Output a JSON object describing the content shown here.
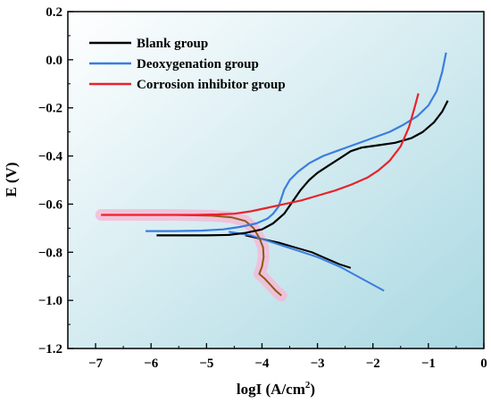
{
  "chart_data": {
    "type": "line",
    "title": "",
    "xlabel": "logI (A/cm",
    "xlabel_sup": "2",
    "xlabel_end": ")",
    "ylabel": "E (V)",
    "xlim": [
      -7.5,
      0
    ],
    "ylim": [
      -1.2,
      0.2
    ],
    "x_ticks": [
      -7,
      -6,
      -5,
      -4,
      -3,
      -2,
      -1,
      0
    ],
    "y_ticks": [
      -1.2,
      -1.0,
      -0.8,
      -0.6,
      -0.4,
      -0.2,
      0.0,
      0.2
    ],
    "x_tick_labels": [
      "−7",
      "−6",
      "−5",
      "−4",
      "−3",
      "−2",
      "−1",
      "0"
    ],
    "y_tick_labels": [
      "−1.2",
      "−1.0",
      "−0.8",
      "−0.6",
      "−0.4",
      "−0.2",
      "0.0",
      "0.2"
    ],
    "legend_position": "top-left",
    "grid": false,
    "background_gradient": [
      "#ffffff",
      "#a9d8e2"
    ],
    "highlight_color": "#f7b6d6",
    "series": [
      {
        "name": "Blank group",
        "color": "#000000",
        "points": [
          [
            -5.9,
            -0.73
          ],
          [
            -5.5,
            -0.73
          ],
          [
            -5.0,
            -0.73
          ],
          [
            -4.6,
            -0.728
          ],
          [
            -4.3,
            -0.72
          ],
          [
            -4.0,
            -0.705
          ],
          [
            -3.8,
            -0.68
          ],
          [
            -3.6,
            -0.64
          ],
          [
            -3.45,
            -0.59
          ],
          [
            -3.3,
            -0.54
          ],
          [
            -3.15,
            -0.5
          ],
          [
            -3.0,
            -0.47
          ],
          [
            -2.8,
            -0.44
          ],
          [
            -2.6,
            -0.41
          ],
          [
            -2.4,
            -0.38
          ],
          [
            -2.2,
            -0.365
          ],
          [
            -1.9,
            -0.355
          ],
          [
            -1.6,
            -0.345
          ],
          [
            -1.3,
            -0.325
          ],
          [
            -1.1,
            -0.3
          ],
          [
            -0.9,
            -0.26
          ],
          [
            -0.75,
            -0.215
          ],
          [
            -0.65,
            -0.17
          ]
        ],
        "cathodic": [
          [
            -4.3,
            -0.73
          ],
          [
            -4.0,
            -0.745
          ],
          [
            -3.7,
            -0.76
          ],
          [
            -3.4,
            -0.78
          ],
          [
            -3.1,
            -0.8
          ],
          [
            -2.8,
            -0.83
          ],
          [
            -2.6,
            -0.85
          ],
          [
            -2.4,
            -0.865
          ]
        ]
      },
      {
        "name": "Deoxygenation group",
        "color": "#3a7de0",
        "points": [
          [
            -6.1,
            -0.712
          ],
          [
            -5.6,
            -0.712
          ],
          [
            -5.1,
            -0.71
          ],
          [
            -4.7,
            -0.705
          ],
          [
            -4.4,
            -0.695
          ],
          [
            -4.1,
            -0.68
          ],
          [
            -3.9,
            -0.66
          ],
          [
            -3.8,
            -0.64
          ],
          [
            -3.7,
            -0.61
          ],
          [
            -3.65,
            -0.575
          ],
          [
            -3.6,
            -0.54
          ],
          [
            -3.5,
            -0.5
          ],
          [
            -3.35,
            -0.465
          ],
          [
            -3.15,
            -0.43
          ],
          [
            -2.9,
            -0.4
          ],
          [
            -2.6,
            -0.375
          ],
          [
            -2.3,
            -0.35
          ],
          [
            -2.0,
            -0.325
          ],
          [
            -1.7,
            -0.3
          ],
          [
            -1.45,
            -0.27
          ],
          [
            -1.2,
            -0.235
          ],
          [
            -1.0,
            -0.19
          ],
          [
            -0.85,
            -0.13
          ],
          [
            -0.75,
            -0.05
          ],
          [
            -0.68,
            0.03
          ]
        ],
        "cathodic": [
          [
            -4.6,
            -0.715
          ],
          [
            -4.2,
            -0.73
          ],
          [
            -3.8,
            -0.76
          ],
          [
            -3.4,
            -0.79
          ],
          [
            -3.0,
            -0.82
          ],
          [
            -2.6,
            -0.86
          ],
          [
            -2.2,
            -0.91
          ],
          [
            -1.8,
            -0.96
          ]
        ]
      },
      {
        "name": "Corrosion inhibitor group",
        "color": "#e8232a",
        "points": [
          [
            -6.9,
            -0.645
          ],
          [
            -6.3,
            -0.645
          ],
          [
            -5.7,
            -0.645
          ],
          [
            -5.2,
            -0.645
          ],
          [
            -4.8,
            -0.643
          ],
          [
            -4.5,
            -0.64
          ],
          [
            -4.2,
            -0.63
          ],
          [
            -3.9,
            -0.615
          ],
          [
            -3.6,
            -0.6
          ],
          [
            -3.3,
            -0.585
          ],
          [
            -3.0,
            -0.565
          ],
          [
            -2.7,
            -0.545
          ],
          [
            -2.4,
            -0.52
          ],
          [
            -2.1,
            -0.49
          ],
          [
            -1.9,
            -0.46
          ],
          [
            -1.7,
            -0.42
          ],
          [
            -1.5,
            -0.36
          ],
          [
            -1.35,
            -0.28
          ],
          [
            -1.25,
            -0.2
          ],
          [
            -1.18,
            -0.14
          ]
        ],
        "cathodic": [
          [
            -6.9,
            -0.645
          ],
          [
            -5.6,
            -0.645
          ],
          [
            -4.9,
            -0.648
          ],
          [
            -4.55,
            -0.655
          ],
          [
            -4.3,
            -0.67
          ],
          [
            -4.15,
            -0.7
          ],
          [
            -4.05,
            -0.74
          ],
          [
            -3.98,
            -0.78
          ],
          [
            -3.97,
            -0.82
          ],
          [
            -4.0,
            -0.86
          ],
          [
            -4.05,
            -0.89
          ],
          [
            -3.95,
            -0.91
          ],
          [
            -3.85,
            -0.935
          ],
          [
            -3.75,
            -0.96
          ],
          [
            -3.65,
            -0.98
          ]
        ]
      }
    ]
  }
}
